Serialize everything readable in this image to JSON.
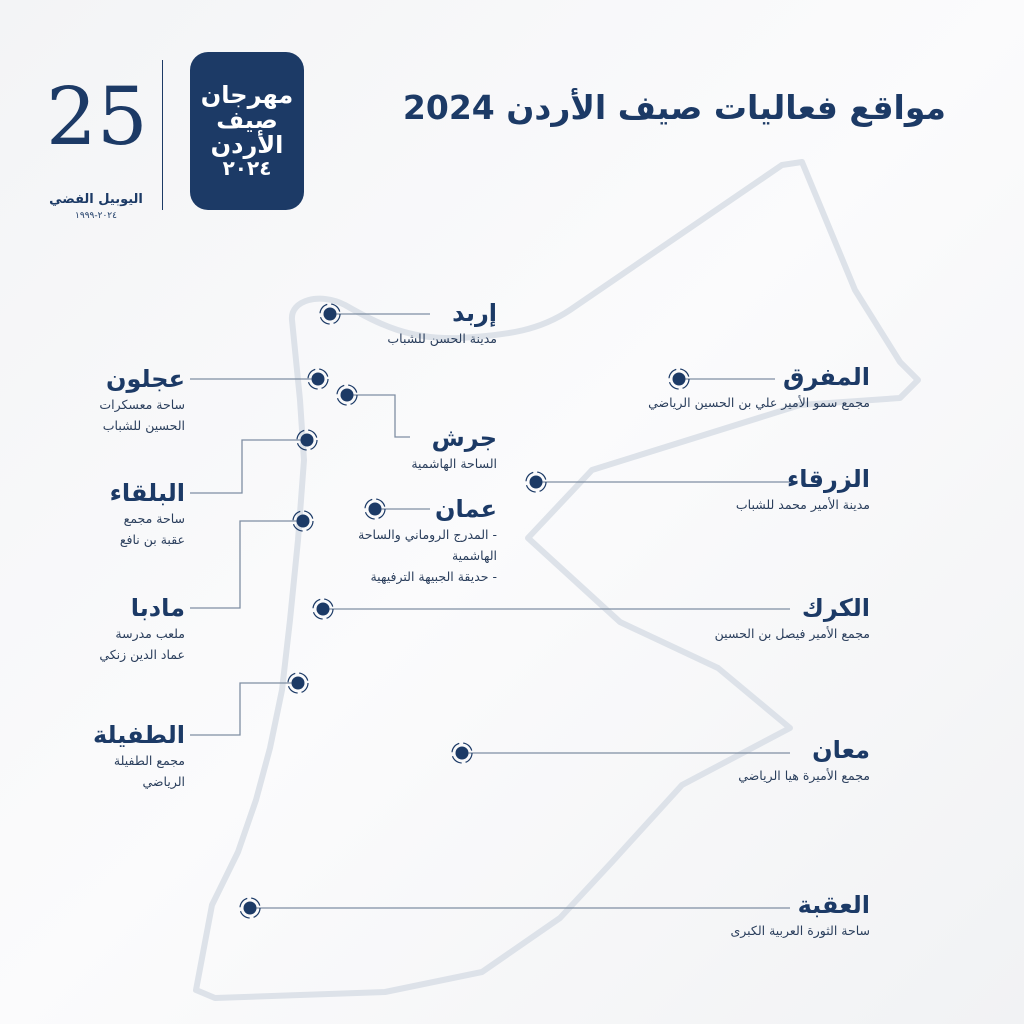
{
  "title": "مواقع فعاليات صيف الأردن 2024",
  "logos": {
    "jubilee": {
      "mark": "25",
      "name": "اليوبيل الفضي",
      "years": "٢٠٢٤-١٩٩٩"
    },
    "festival": {
      "lines": [
        "مهرجان",
        "صيف",
        "الأردن",
        "٢٠٢٤"
      ]
    }
  },
  "colors": {
    "primary": "#1c3a66",
    "map_outline": "#dde2e9",
    "background": "#f6f7f8"
  },
  "locations": [
    {
      "name": "إربد",
      "venues": [
        "مدينة الحسن للشباب"
      ]
    },
    {
      "name": "عجلون",
      "venues": [
        "ساحة معسكرات",
        "الحسين للشباب"
      ]
    },
    {
      "name": "جرش",
      "venues": [
        "الساحة الهاشمية"
      ]
    },
    {
      "name": "البلقاء",
      "venues": [
        "ساحة مجمع",
        "عقبة بن نافع"
      ]
    },
    {
      "name": "عمان",
      "venues": [
        "-   المدرج الروماني والساحة",
        "الهاشمية",
        "-   حديقة الجبيهة الترفيهية"
      ]
    },
    {
      "name": "مادبا",
      "venues": [
        "ملعب مدرسة",
        "عماد الدين زنكي"
      ]
    },
    {
      "name": "الكرك",
      "venues": [
        "مجمع الأمير فيصل بن الحسين"
      ]
    },
    {
      "name": "الطفيلة",
      "venues": [
        "مجمع الطفيلة",
        "الرياضي"
      ]
    },
    {
      "name": "المفرق",
      "venues": [
        "مجمع سمو الأمير علي بن الحسين الرياضي"
      ]
    },
    {
      "name": "الزرقاء",
      "venues": [
        "مدينة الأمير محمد للشباب"
      ]
    },
    {
      "name": "معان",
      "venues": [
        "مجمع الأميرة هيا الرياضي"
      ]
    },
    {
      "name": "العقبة",
      "venues": [
        "ساحة الثورة العربية الكبرى"
      ]
    }
  ]
}
